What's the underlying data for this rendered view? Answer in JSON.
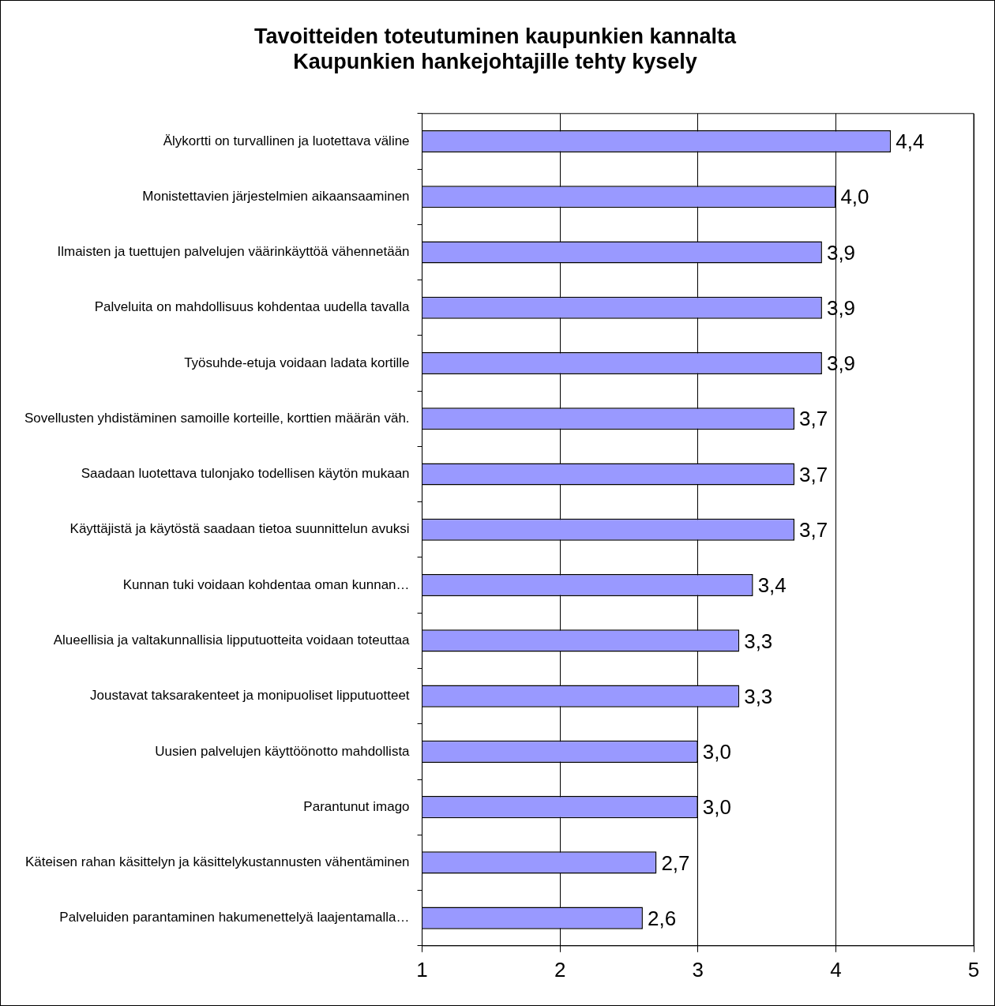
{
  "chart_data": {
    "type": "bar",
    "orientation": "horizontal",
    "title": "Tavoitteiden toteutuminen kaupunkien kannalta\nKaupunkien hankejohtajille tehty kysely",
    "categories": [
      "Älykortti on turvallinen ja luotettava väline",
      "Monistettavien järjestelmien aikaansaaminen",
      "Ilmaisten ja tuettujen palvelujen väärinkäyttöä vähennetään",
      "Palveluita on mahdollisuus kohdentaa uudella tavalla",
      "Työsuhde-etuja voidaan ladata kortille",
      "Sovellusten yhdistäminen samoille korteille, korttien määrän väh.",
      "Saadaan luotettava tulonjako todellisen käytön mukaan",
      "Käyttäjistä ja käytöstä saadaan tietoa suunnittelun avuksi",
      "Kunnan tuki voidaan kohdentaa oman kunnan…",
      "Alueellisia ja valtakunnallisia lipputuotteita voidaan toteuttaa",
      "Joustavat taksarakenteet ja monipuoliset lipputuotteet",
      "Uusien palvelujen käyttöönotto mahdollista",
      "Parantunut imago",
      "Käteisen rahan käsittelyn ja käsittelykustannusten vähentäminen",
      "Palveluiden parantaminen hakumenettelyä laajentamalla…"
    ],
    "values": [
      4.4,
      4.0,
      3.9,
      3.9,
      3.9,
      3.7,
      3.7,
      3.7,
      3.4,
      3.3,
      3.3,
      3.0,
      3.0,
      2.7,
      2.6
    ],
    "value_labels": [
      "4,4",
      "4,0",
      "3,9",
      "3,9",
      "3,9",
      "3,7",
      "3,7",
      "3,7",
      "3,4",
      "3,3",
      "3,3",
      "3,0",
      "3,0",
      "2,7",
      "2,6"
    ],
    "color": "#9999ff",
    "xlim": [
      1,
      5
    ],
    "xticks": [
      1,
      2,
      3,
      4,
      5
    ],
    "grid": "x",
    "legend": false
  }
}
